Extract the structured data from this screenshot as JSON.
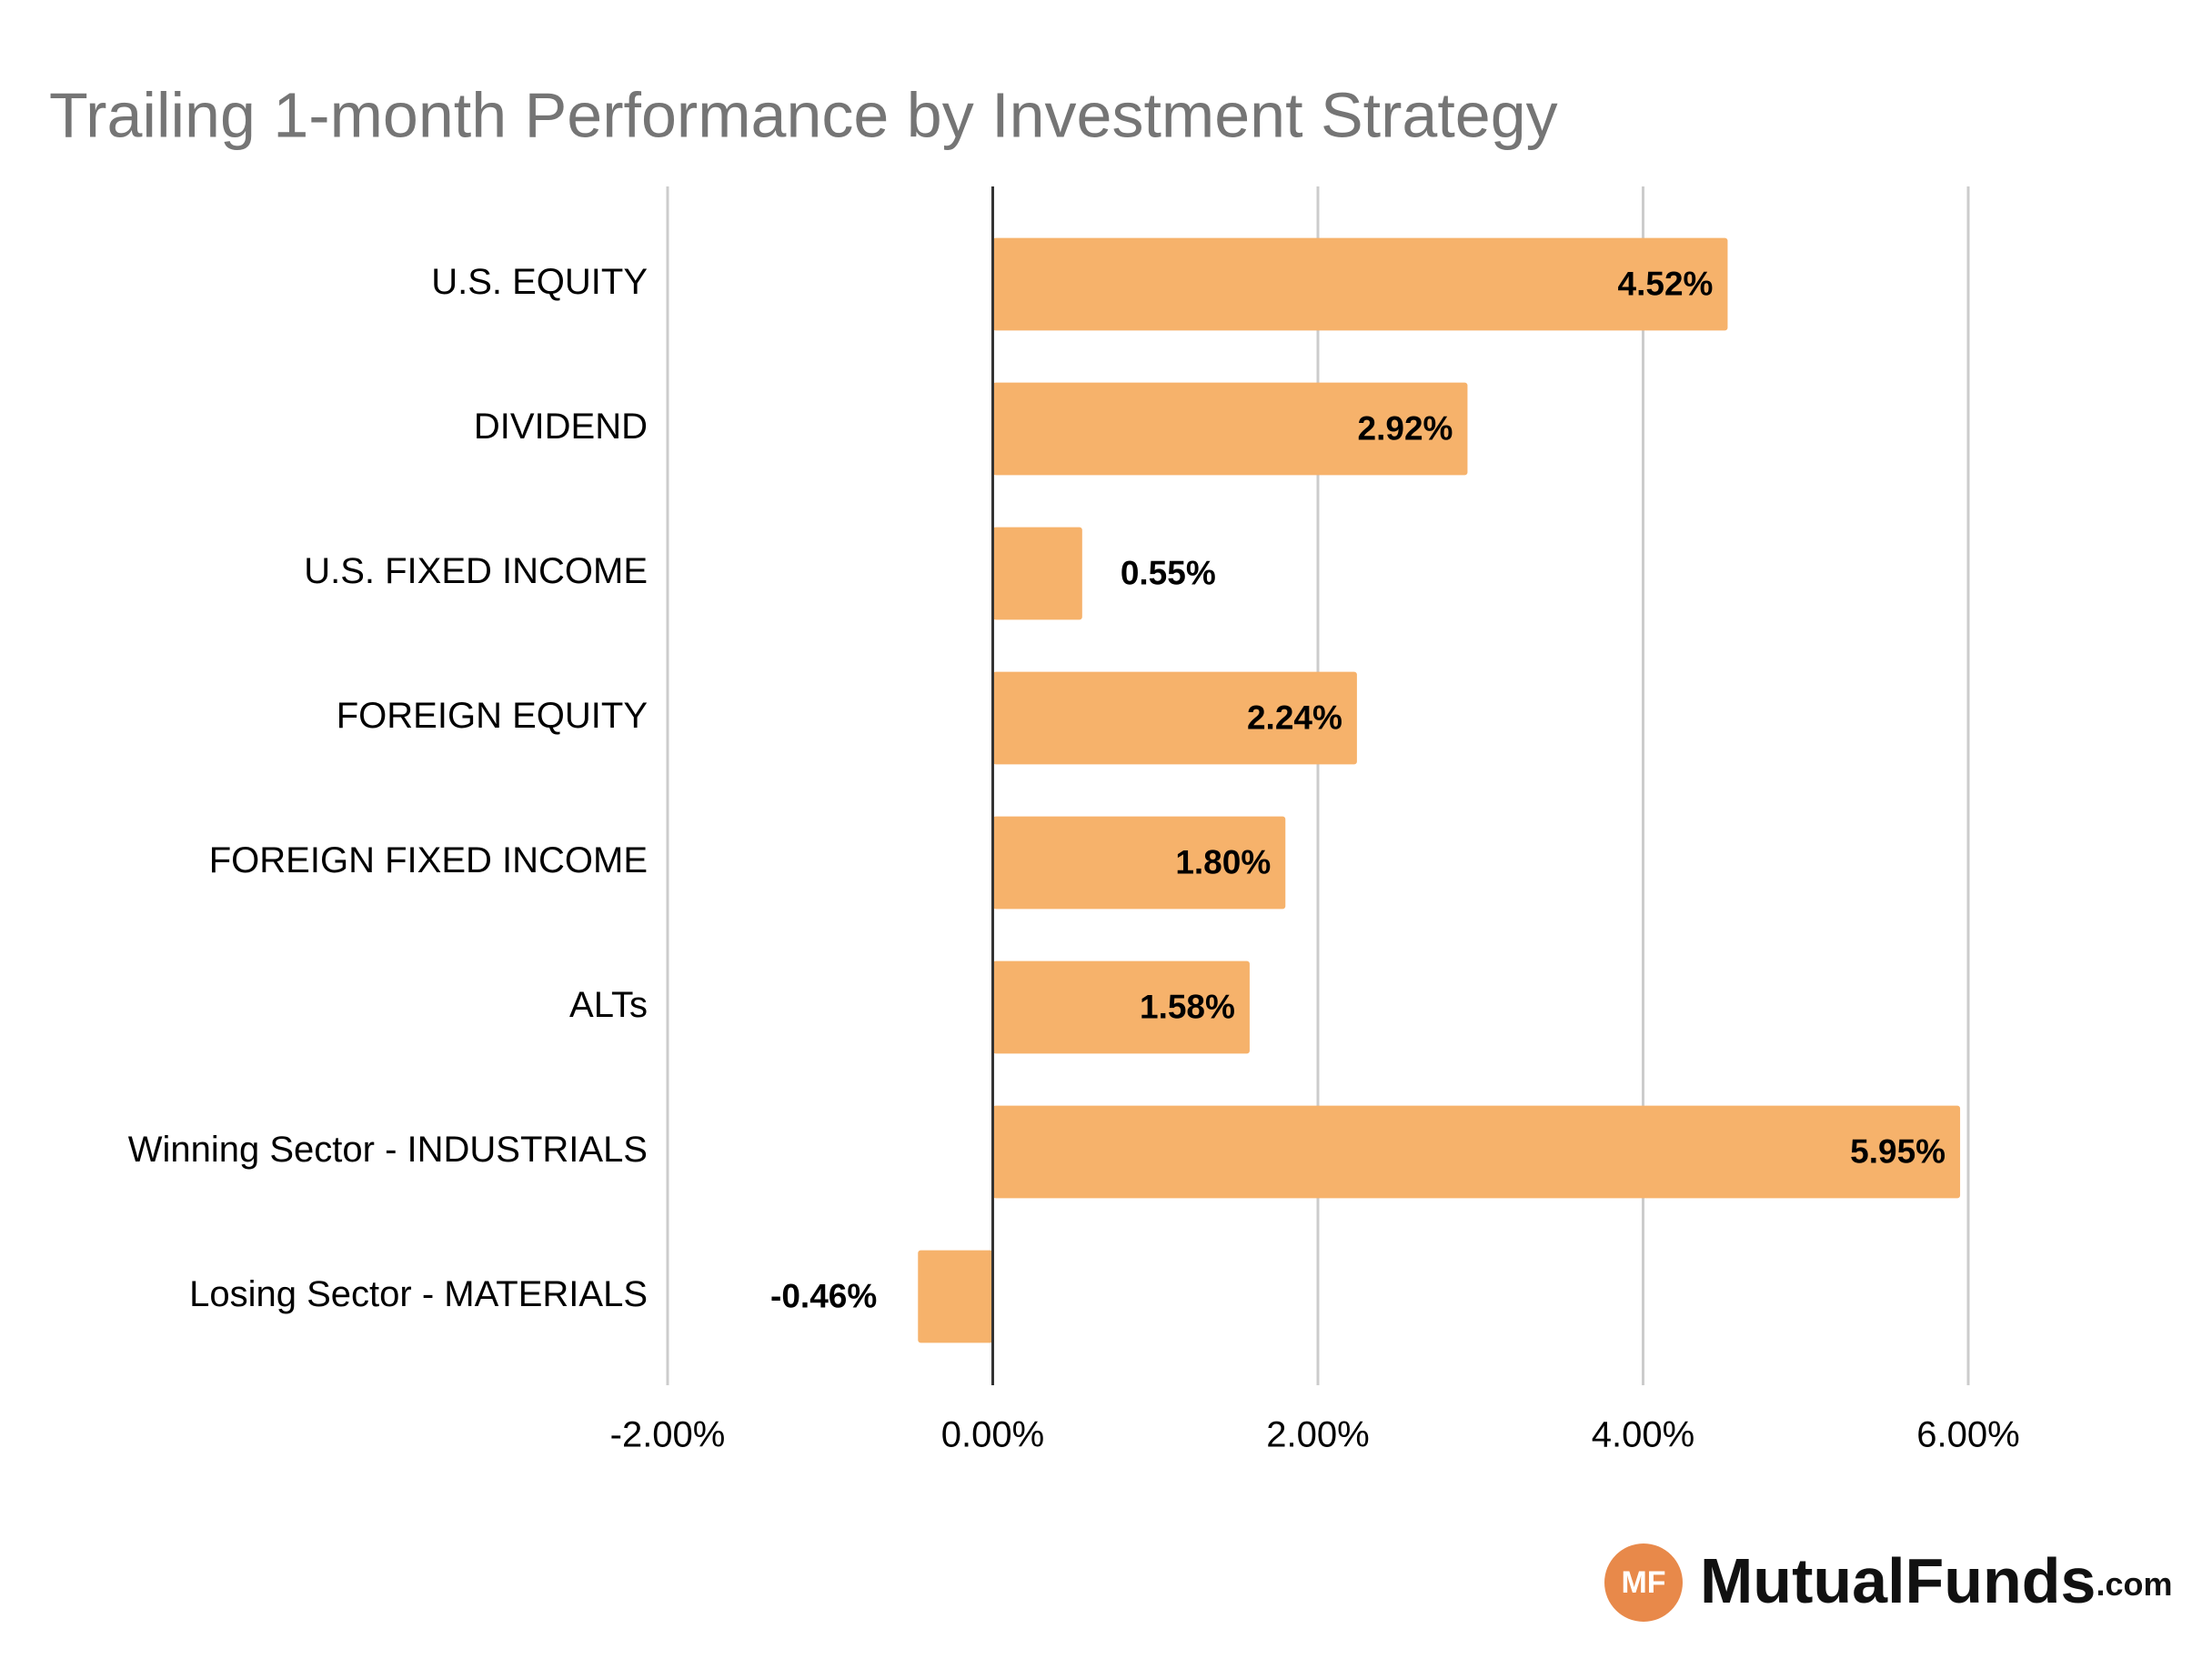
{
  "chart_data": {
    "type": "bar",
    "orientation": "horizontal",
    "title": "Trailing 1-month Performance by Investment Strategy",
    "categories": [
      "U.S. EQUITY",
      "DIVIDEND",
      "U.S. FIXED INCOME",
      "FOREIGN EQUITY",
      "FOREIGN FIXED INCOME",
      "ALTs",
      "Winning Sector - INDUSTRIALS",
      "Losing Sector - MATERIALS"
    ],
    "values": [
      4.52,
      2.92,
      0.55,
      2.24,
      1.8,
      1.58,
      5.95,
      -0.46
    ],
    "value_labels": [
      "4.52%",
      "2.92%",
      "0.55%",
      "2.24%",
      "1.80%",
      "1.58%",
      "5.95%",
      "-0.46%"
    ],
    "color": "#f6b26b",
    "xlim": [
      -2,
      6
    ],
    "xticks": [
      {
        "value": -2,
        "label": "-2.00%"
      },
      {
        "value": 0,
        "label": "0.00%"
      },
      {
        "value": 2,
        "label": "2.00%"
      },
      {
        "value": 4,
        "label": "4.00%"
      },
      {
        "value": 6,
        "label": "6.00%"
      }
    ],
    "grid": true
  },
  "logo": {
    "mark": "MF",
    "name": "MutualFunds",
    "suffix": ".com"
  }
}
